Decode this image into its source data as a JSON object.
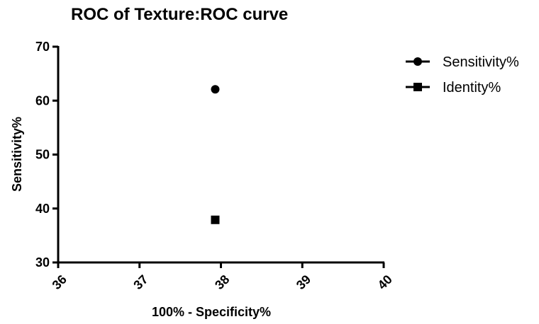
{
  "chart_data": {
    "type": "scatter",
    "title": "ROC of Texture:ROC curve",
    "xlabel": "100%  - Specificity%",
    "ylabel": "Sensitivity%",
    "xlim": [
      36,
      40
    ],
    "ylim": [
      30,
      70
    ],
    "xticks": [
      36,
      37,
      38,
      39,
      40
    ],
    "yticks": [
      30,
      40,
      50,
      60,
      70
    ],
    "legend_position": "top-right",
    "series": [
      {
        "name": "Sensitivity%",
        "marker": "circle",
        "color": "#000000",
        "points": [
          {
            "x": 37.93,
            "y": 62.1
          }
        ]
      },
      {
        "name": "Identity%",
        "marker": "square",
        "color": "#000000",
        "points": [
          {
            "x": 37.93,
            "y": 37.9
          }
        ]
      }
    ]
  }
}
